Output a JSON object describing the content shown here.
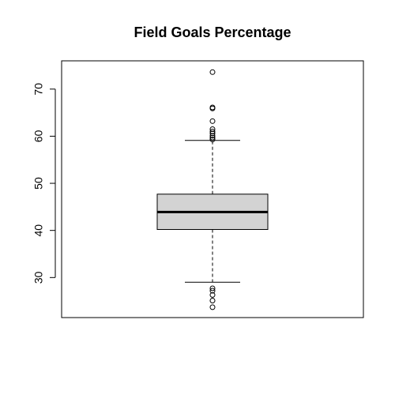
{
  "chart_data": {
    "type": "boxplot",
    "title": "Field Goals Percentage",
    "xlabel": "",
    "ylabel": "",
    "ylim": [
      21.5,
      76
    ],
    "yticks": [
      30,
      40,
      50,
      60,
      70
    ],
    "box": {
      "lower_whisker": 29,
      "q1": 40.2,
      "median": 43.9,
      "q3": 47.7,
      "upper_whisker": 59.1
    },
    "outliers": [
      23.7,
      25.1,
      26.3,
      27.2,
      27.7,
      59.3,
      59.7,
      60.1,
      60.6,
      61.0,
      61.5,
      63.2,
      65.9,
      66.1,
      73.6
    ],
    "colors": {
      "box_fill": "#d3d3d3",
      "stroke": "#000000"
    }
  }
}
